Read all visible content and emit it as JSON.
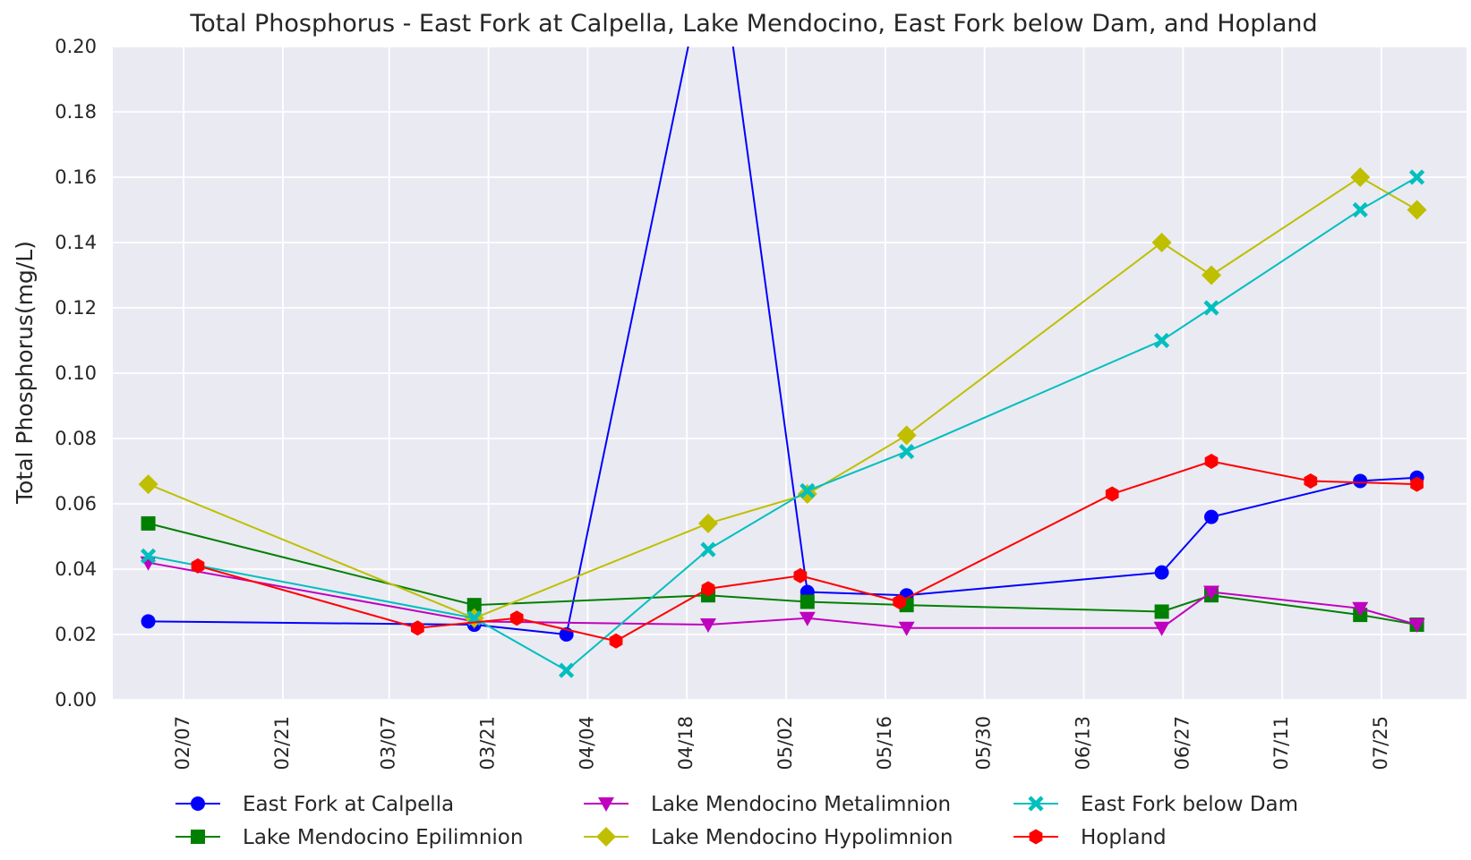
{
  "chart_data": {
    "type": "line",
    "title": "Total Phosphorus - East Fork at Calpella, Lake Mendocino, East Fork below Dam, and Hopland",
    "xlabel": "",
    "ylabel": "Total Phosphorus(mg/L)",
    "ylim": [
      0.0,
      0.2
    ],
    "yticks": [
      "0.00",
      "0.02",
      "0.04",
      "0.06",
      "0.08",
      "0.10",
      "0.12",
      "0.14",
      "0.16",
      "0.18",
      "0.20"
    ],
    "x_axis": {
      "type": "date",
      "tick_format": "MM/DD",
      "ticks": [
        "02-07",
        "02-21",
        "03-07",
        "03-21",
        "04-04",
        "04-18",
        "05-02",
        "05-16",
        "05-30",
        "06-13",
        "06-27",
        "07-11",
        "07-25"
      ],
      "xlim": [
        "01-28",
        "08-06"
      ]
    },
    "grid": true,
    "legend_position": "bottom",
    "series": [
      {
        "name": "East Fork at Calpella",
        "color": "#0000ff",
        "marker": "circle",
        "x": [
          "02-02",
          "03-19",
          "04-01",
          "04-22",
          "05-05",
          "05-19",
          "06-24",
          "07-01",
          "07-22",
          "07-30"
        ],
        "y": [
          0.024,
          0.023,
          0.02,
          0.24,
          0.033,
          0.032,
          0.039,
          0.056,
          0.067,
          0.068
        ]
      },
      {
        "name": "Lake Mendocino Epilimnion",
        "color": "#008000",
        "marker": "square",
        "x": [
          "02-02",
          "03-19",
          "04-21",
          "05-05",
          "05-19",
          "06-24",
          "07-01",
          "07-22",
          "07-30"
        ],
        "y": [
          0.054,
          0.029,
          0.032,
          0.03,
          0.029,
          0.027,
          0.032,
          0.026,
          0.023
        ]
      },
      {
        "name": "Lake Mendocino Metalimnion",
        "color": "#bf00bf",
        "marker": "triangle-down",
        "x": [
          "02-02",
          "03-19",
          "04-21",
          "05-05",
          "05-19",
          "06-24",
          "07-01",
          "07-22",
          "07-30"
        ],
        "y": [
          0.042,
          0.024,
          0.023,
          0.025,
          0.022,
          0.022,
          0.033,
          0.028,
          0.023
        ]
      },
      {
        "name": "Lake Mendocino Hypolimnion",
        "color": "#bfbf00",
        "marker": "diamond",
        "x": [
          "02-02",
          "03-19",
          "04-21",
          "05-05",
          "05-19",
          "06-24",
          "07-01",
          "07-22",
          "07-30"
        ],
        "y": [
          0.066,
          0.025,
          0.054,
          0.063,
          0.081,
          0.14,
          0.13,
          0.16,
          0.15
        ]
      },
      {
        "name": "East Fork below Dam",
        "color": "#00bfbf",
        "marker": "x",
        "x": [
          "02-02",
          "03-19",
          "04-01",
          "04-21",
          "05-05",
          "05-19",
          "06-24",
          "07-01",
          "07-22",
          "07-30"
        ],
        "y": [
          0.044,
          0.025,
          0.009,
          0.046,
          0.064,
          0.076,
          0.11,
          0.12,
          0.15,
          0.16
        ]
      },
      {
        "name": "Hopland",
        "color": "#ff0000",
        "marker": "hexagon",
        "x": [
          "02-09",
          "03-11",
          "03-25",
          "04-08",
          "04-21",
          "05-04",
          "05-18",
          "06-17",
          "07-01",
          "07-15",
          "07-30"
        ],
        "y": [
          0.041,
          0.022,
          0.025,
          0.018,
          0.034,
          0.038,
          0.03,
          0.063,
          0.073,
          0.067,
          0.066
        ]
      }
    ]
  }
}
